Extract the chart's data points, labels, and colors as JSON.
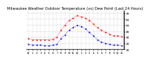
{
  "title": "Milwaukee Weather Outdoor Temperature (vs) Dew Point (Last 24 Hours)",
  "title_fontsize": 3.8,
  "background_color": "#ffffff",
  "grid_color": "#cccccc",
  "temp_color": "#ff0000",
  "dew_color": "#0000ff",
  "ylim": [
    10,
    75
  ],
  "yticks": [
    10,
    20,
    30,
    40,
    50,
    60,
    70
  ],
  "ytick_fontsize": 3.2,
  "xtick_fontsize": 2.6,
  "hours": [
    0,
    1,
    2,
    3,
    4,
    5,
    6,
    7,
    8,
    9,
    10,
    11,
    12,
    13,
    14,
    15,
    16,
    17,
    18,
    19,
    20,
    21,
    22,
    23
  ],
  "temp": [
    28,
    26,
    26,
    26,
    26,
    26,
    27,
    30,
    42,
    50,
    58,
    62,
    66,
    64,
    62,
    58,
    52,
    46,
    42,
    38,
    35,
    33,
    32,
    31
  ],
  "dew": [
    18,
    17,
    17,
    17,
    16,
    16,
    17,
    18,
    28,
    34,
    42,
    46,
    50,
    48,
    44,
    38,
    32,
    26,
    22,
    20,
    18,
    17,
    17,
    16
  ],
  "hour_labels": [
    "12",
    "1",
    "2",
    "3",
    "4",
    "5",
    "6",
    "7",
    "8",
    "9",
    "10",
    "11",
    "12",
    "1",
    "2",
    "3",
    "4",
    "5",
    "6",
    "7",
    "8",
    "9",
    "10",
    "11"
  ]
}
